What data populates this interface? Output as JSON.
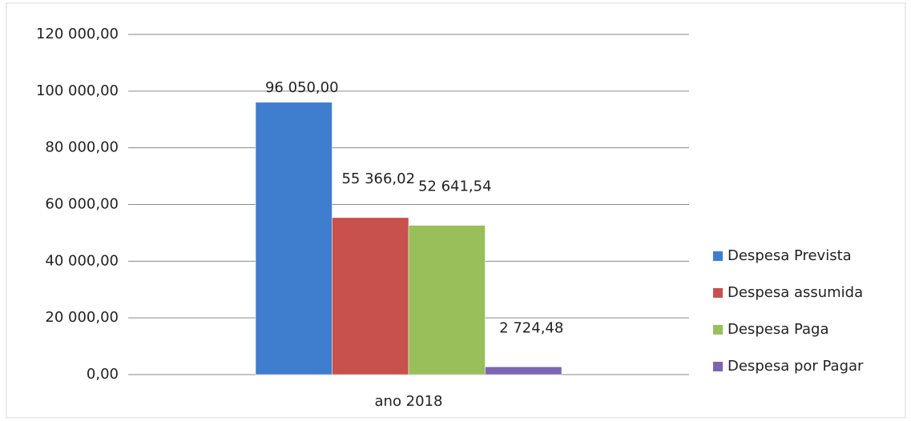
{
  "chart_data": {
    "type": "bar",
    "categories": [
      "ano 2018"
    ],
    "series": [
      {
        "name": "Despesa Prevista",
        "color": "#3f7dcf",
        "values": [
          96050.0
        ],
        "value_labels": [
          "96 050,00"
        ]
      },
      {
        "name": "Despesa assumida",
        "color": "#c8504d",
        "values": [
          55366.02
        ],
        "value_labels": [
          "55 366,02"
        ]
      },
      {
        "name": "Despesa Paga",
        "color": "#98bf5a",
        "values": [
          52641.54
        ],
        "value_labels": [
          "52 641,54"
        ]
      },
      {
        "name": "Despesa por Pagar",
        "color": "#7b66b1",
        "values": [
          2724.48
        ],
        "value_labels": [
          "2 724,48"
        ]
      }
    ],
    "ylim": [
      0,
      120000
    ],
    "yticks": [
      {
        "value": 0,
        "label": "0,00"
      },
      {
        "value": 20000,
        "label": "20 000,00"
      },
      {
        "value": 40000,
        "label": "40 000,00"
      },
      {
        "value": 60000,
        "label": "60 000,00"
      },
      {
        "value": 80000,
        "label": "80 000,00"
      },
      {
        "value": 100000,
        "label": "100 000,00"
      },
      {
        "value": 120000,
        "label": "120 000,00"
      }
    ],
    "grid": true,
    "legend": "right"
  }
}
